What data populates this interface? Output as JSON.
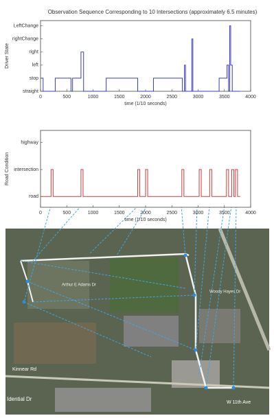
{
  "chart_data": [
    {
      "type": "line",
      "title": "Observation Sequence Corresponding to 10 Intersections (approximately 6.5 minutes)",
      "xlabel": "time (1/10 seconds)",
      "ylabel": "Driver State",
      "x": [
        0,
        50,
        50,
        280,
        280,
        580,
        580,
        610,
        610,
        770,
        770,
        820,
        820,
        1250,
        1250,
        1850,
        1850,
        2150,
        2150,
        2700,
        2700,
        2740,
        2740,
        2760,
        2760,
        2880,
        2880,
        2900,
        2900,
        3400,
        3400,
        3550,
        3550,
        3580,
        3580,
        3600,
        3600,
        3620,
        3620,
        3650,
        3650,
        3800
      ],
      "values": [
        1,
        1,
        0,
        0,
        1,
        1,
        0,
        0,
        1,
        1,
        3,
        3,
        0,
        0,
        1,
        1,
        0,
        0,
        1,
        1,
        0,
        0,
        2,
        2,
        0,
        0,
        4,
        4,
        0,
        0,
        1,
        1,
        2,
        2,
        0,
        0,
        5,
        5,
        2,
        2,
        0,
        0
      ],
      "color": "#3b3bc4",
      "xlim": [
        0,
        4000
      ],
      "xticks": [
        0,
        500,
        1000,
        1500,
        2000,
        2500,
        3000,
        3500,
        4000
      ],
      "ylim": [
        0,
        5.4
      ],
      "yticks": [
        {
          "value": 0,
          "label": "straight"
        },
        {
          "value": 1,
          "label": "stop"
        },
        {
          "value": 2,
          "label": "left"
        },
        {
          "value": 3,
          "label": "right"
        },
        {
          "value": 4,
          "label": "rightChange"
        },
        {
          "value": 5,
          "label": "LeftChange"
        }
      ]
    },
    {
      "type": "line",
      "xlabel": "time (1/10 seconds)",
      "ylabel": "Road Condition",
      "x": [
        0,
        200,
        200,
        240,
        240,
        770,
        770,
        810,
        810,
        1850,
        1850,
        1890,
        1890,
        2000,
        2000,
        2040,
        2040,
        2690,
        2690,
        2730,
        2730,
        3020,
        3020,
        3060,
        3060,
        3220,
        3220,
        3260,
        3260,
        3540,
        3540,
        3580,
        3580,
        3640,
        3640,
        3680,
        3680,
        3710,
        3710,
        3750,
        3750,
        3800
      ],
      "values": [
        0,
        0,
        1,
        1,
        0,
        0,
        1,
        1,
        0,
        0,
        1,
        1,
        0,
        0,
        1,
        1,
        0,
        0,
        1,
        1,
        0,
        0,
        1,
        1,
        0,
        0,
        1,
        1,
        0,
        0,
        1,
        1,
        0,
        0,
        1,
        1,
        0,
        0,
        1,
        1,
        0,
        0
      ],
      "color": "#d23c3c",
      "xlim": [
        0,
        4000
      ],
      "xticks": [
        0,
        500,
        1000,
        1500,
        2000,
        2500,
        3000,
        3500,
        4000
      ],
      "ylim": [
        -0.4,
        2.45
      ],
      "yticks": [
        {
          "value": 0,
          "label": "road"
        },
        {
          "value": 1,
          "label": "intersection"
        },
        {
          "value": 2,
          "label": "highway"
        }
      ]
    }
  ],
  "map": {
    "labels": [
      "Kinnear Rd",
      "W 11th Ave",
      "Idential Dr",
      "Arthur E Adams Dr",
      "Woody Hayes Dr"
    ]
  }
}
